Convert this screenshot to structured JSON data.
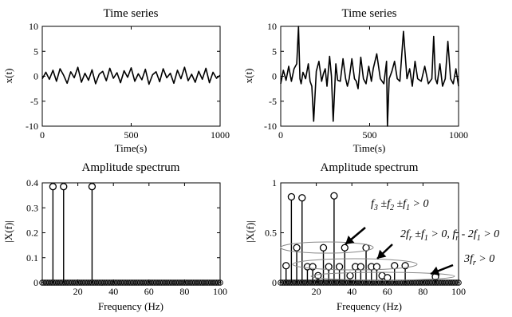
{
  "chart_data": [
    {
      "type": "line",
      "title": "Time series",
      "xlabel": "Time(s)",
      "ylabel": "x(t)",
      "xlim": [
        0,
        1000
      ],
      "ylim": [
        -10,
        10
      ],
      "xticks": [
        0,
        500,
        1000
      ],
      "yticks": [
        10,
        5,
        0,
        -5,
        -10
      ],
      "x": [
        0,
        20,
        40,
        60,
        80,
        100,
        120,
        140,
        160,
        180,
        200,
        220,
        240,
        260,
        280,
        300,
        320,
        340,
        360,
        380,
        400,
        420,
        440,
        460,
        480,
        500,
        520,
        540,
        560,
        580,
        600,
        620,
        640,
        660,
        680,
        700,
        720,
        740,
        760,
        780,
        800,
        820,
        840,
        860,
        880,
        900,
        920,
        940,
        960,
        980,
        1000
      ],
      "y": [
        -0.5,
        0.8,
        -0.6,
        1.2,
        -1.0,
        1.5,
        0.2,
        -1.4,
        0.9,
        -0.3,
        1.8,
        -1.2,
        0.6,
        -0.8,
        1.3,
        -1.5,
        0.4,
        1.0,
        -0.9,
        1.6,
        -0.4,
        0.7,
        -1.3,
        1.1,
        -0.2,
        1.7,
        -1.0,
        0.5,
        -0.7,
        1.4,
        -1.6,
        0.3,
        0.9,
        -1.1,
        1.5,
        -0.3,
        0.6,
        -1.4,
        1.2,
        -0.5,
        1.8,
        -0.9,
        0.4,
        -1.2,
        1.0,
        -0.6,
        1.6,
        -1.3,
        0.8,
        -0.4,
        0.2
      ]
    },
    {
      "type": "line",
      "title": "Time series",
      "xlabel": "Time(s)",
      "ylabel": "x(t)",
      "xlim": [
        0,
        1000
      ],
      "ylim": [
        -10,
        10
      ],
      "xticks": [
        0,
        500,
        1000
      ],
      "yticks": [
        10,
        5,
        0,
        -5,
        -10
      ],
      "x": [
        0,
        15,
        30,
        45,
        60,
        75,
        90,
        100,
        108,
        115,
        125,
        140,
        155,
        165,
        175,
        185,
        200,
        215,
        230,
        240,
        250,
        260,
        275,
        285,
        295,
        310,
        320,
        335,
        350,
        365,
        375,
        385,
        400,
        415,
        425,
        435,
        450,
        465,
        480,
        495,
        510,
        520,
        540,
        560,
        580,
        595,
        600,
        610,
        625,
        640,
        655,
        670,
        690,
        710,
        725,
        740,
        755,
        770,
        790,
        810,
        830,
        850,
        860,
        870,
        880,
        895,
        910,
        925,
        940,
        955,
        970,
        985,
        1000
      ],
      "y": [
        -1.5,
        1.2,
        -0.8,
        2.0,
        -1.0,
        1.5,
        2.5,
        10,
        -0.5,
        -1.5,
        0.8,
        -0.5,
        2.5,
        -1.0,
        -2.0,
        -9,
        1.0,
        3.0,
        -1.0,
        0.5,
        1.5,
        -2.0,
        4.0,
        0.0,
        -9,
        2.5,
        -0.8,
        -1.0,
        3.5,
        -0.5,
        -2.0,
        -0.5,
        3.5,
        -0.5,
        -1.0,
        -2.5,
        3.8,
        -0.5,
        -1.5,
        2.0,
        -1.0,
        1.5,
        4.5,
        -0.5,
        -1.5,
        3.0,
        -10,
        -0.5,
        1.0,
        3.0,
        -0.5,
        -1.0,
        9.0,
        -0.5,
        1.5,
        -2.0,
        3.0,
        -0.5,
        -1.0,
        2.0,
        -1.5,
        -0.5,
        8.0,
        -0.5,
        -1.5,
        2.5,
        -2.0,
        -0.5,
        7.0,
        -0.5,
        -1.5,
        1.5,
        -2.0
      ]
    },
    {
      "type": "scatter",
      "title": "Amplitude spectrum",
      "xlabel": "Frequency (Hz)",
      "ylabel": "|X(f)|",
      "xlim": [
        0,
        100
      ],
      "ylim": [
        0,
        0.4
      ],
      "xticks": [
        20,
        40,
        60,
        80,
        100
      ],
      "yticks": [
        0.4,
        0.3,
        0.2,
        0.1,
        0
      ],
      "xtick_labels": [
        "20",
        "40",
        "60",
        "80",
        "100"
      ],
      "ytick_labels": [
        "0.4",
        "0.3",
        "0.2",
        "0.1",
        "0"
      ],
      "baseline_step": 1,
      "stems": [
        {
          "x": 6,
          "y": 0.385
        },
        {
          "x": 12,
          "y": 0.385
        },
        {
          "x": 28,
          "y": 0.385
        }
      ]
    },
    {
      "type": "scatter",
      "title": "Amplitude spectrum",
      "xlabel": "Frequency (Hz)",
      "ylabel": "|X(f)|",
      "xlim": [
        0,
        100
      ],
      "ylim": [
        0,
        1
      ],
      "xticks": [
        20,
        40,
        60,
        80,
        100
      ],
      "yticks": [
        1,
        0.5,
        0
      ],
      "xtick_labels": [
        "20",
        "40",
        "60",
        "80",
        "100"
      ],
      "ytick_labels": [
        "1",
        "0.5",
        "0"
      ],
      "baseline_step": 1,
      "stems": [
        {
          "x": 3,
          "y": 0.17
        },
        {
          "x": 6,
          "y": 0.86
        },
        {
          "x": 9,
          "y": 0.35
        },
        {
          "x": 12,
          "y": 0.85
        },
        {
          "x": 15,
          "y": 0.16
        },
        {
          "x": 18,
          "y": 0.16
        },
        {
          "x": 21,
          "y": 0.07
        },
        {
          "x": 24,
          "y": 0.35
        },
        {
          "x": 27,
          "y": 0.16
        },
        {
          "x": 30,
          "y": 0.87
        },
        {
          "x": 33,
          "y": 0.16
        },
        {
          "x": 36,
          "y": 0.35
        },
        {
          "x": 39,
          "y": 0.07
        },
        {
          "x": 42,
          "y": 0.16
        },
        {
          "x": 45,
          "y": 0.16
        },
        {
          "x": 48,
          "y": 0.35
        },
        {
          "x": 51,
          "y": 0.16
        },
        {
          "x": 54,
          "y": 0.16
        },
        {
          "x": 57,
          "y": 0.07
        },
        {
          "x": 60,
          "y": 0.05
        },
        {
          "x": 64,
          "y": 0.17
        },
        {
          "x": 70,
          "y": 0.17
        },
        {
          "x": 87,
          "y": 0.06
        }
      ],
      "annotations": [
        {
          "base": "f",
          "sub": "3",
          "rest": " ±f",
          "sub2": "2",
          "rest2": " ±f",
          "sub3": "1",
          "rest3": " > 0"
        },
        {
          "text": "2f",
          "sub": "r",
          "rest": " ±f",
          "sub2": "1",
          "rest2": " > 0, f",
          "sub3": "r",
          "rest3": " - 2f",
          "sub4": "1",
          "rest4": " > 0"
        },
        {
          "text": "3f",
          "sub": "r",
          "rest": " > 0"
        }
      ]
    }
  ]
}
